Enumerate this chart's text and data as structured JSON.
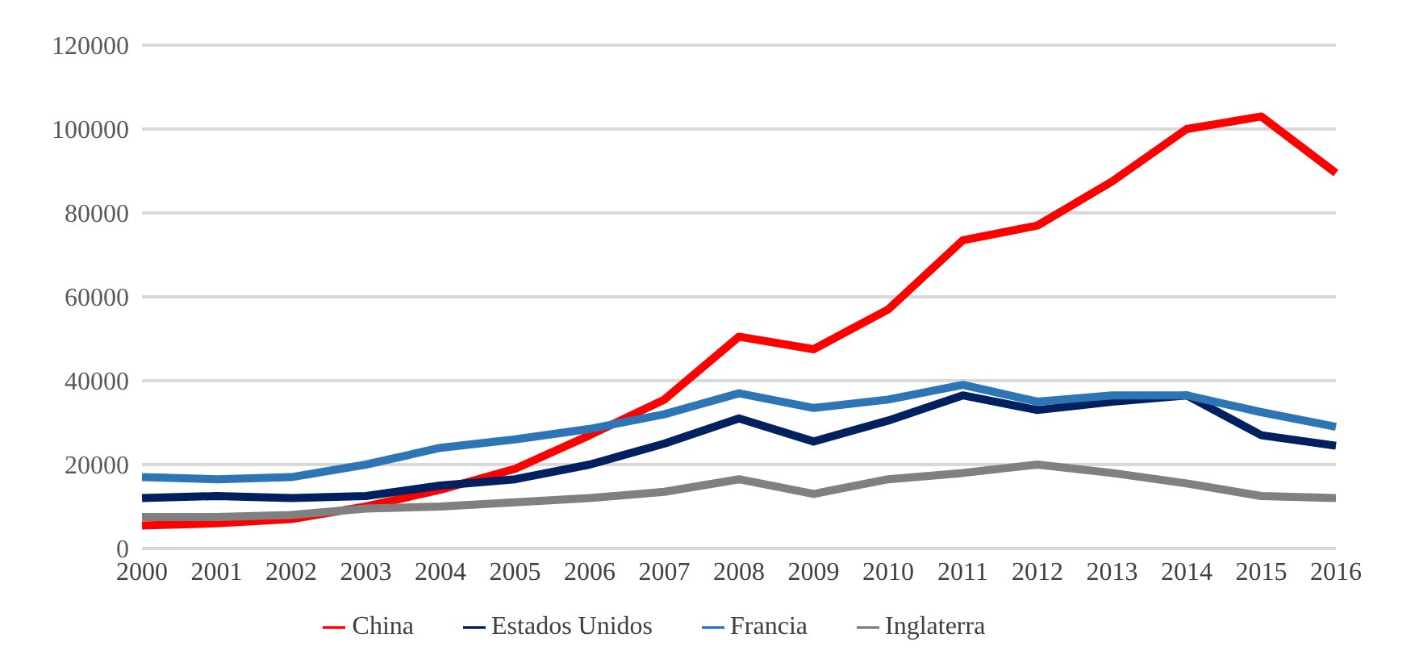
{
  "chart_data": {
    "type": "line",
    "categories": [
      "2000",
      "2001",
      "2002",
      "2003",
      "2004",
      "2005",
      "2006",
      "2007",
      "2008",
      "2009",
      "2010",
      "2011",
      "2012",
      "2013",
      "2014",
      "2015",
      "2016"
    ],
    "series": [
      {
        "name": "China",
        "color": "#ff0000",
        "values": [
          5500,
          6000,
          7000,
          10000,
          14000,
          19000,
          27000,
          35500,
          50500,
          47500,
          57000,
          73500,
          77000,
          87500,
          100000,
          103000,
          89500
        ]
      },
      {
        "name": "Estados Unidos",
        "color": "#002060",
        "values": [
          12000,
          12500,
          12000,
          12500,
          15000,
          16500,
          20000,
          25000,
          31000,
          25500,
          30500,
          36500,
          33000,
          35000,
          36500,
          27000,
          24500
        ]
      },
      {
        "name": "Francia",
        "color": "#2e75b6",
        "values": [
          17000,
          16500,
          17000,
          20000,
          24000,
          26000,
          28500,
          32000,
          37000,
          33500,
          35500,
          39000,
          35000,
          36500,
          36500,
          32500,
          29000
        ]
      },
      {
        "name": "Inglaterra",
        "color": "#808080",
        "values": [
          7500,
          7500,
          8000,
          9500,
          10000,
          11000,
          12000,
          13500,
          16500,
          13000,
          16500,
          18000,
          20000,
          18000,
          15500,
          12500,
          12000
        ]
      }
    ],
    "ylim": [
      0,
      120000
    ],
    "yticks": [
      0,
      20000,
      40000,
      60000,
      80000,
      100000,
      120000
    ],
    "grid": "y",
    "legend": "bottom",
    "marker": "none",
    "line_style": "solid"
  }
}
